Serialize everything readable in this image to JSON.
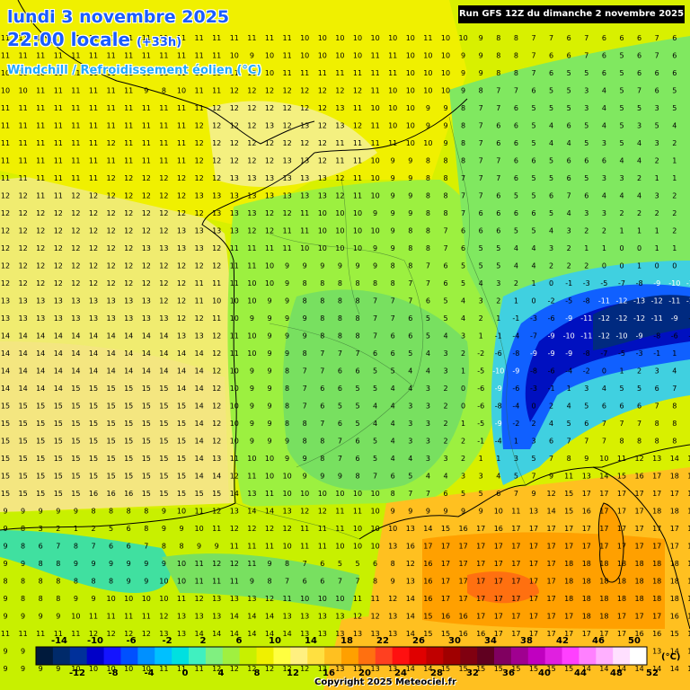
{
  "header": {
    "date": "lundi 3 novembre 2025",
    "time": "22:00 locale",
    "offset": "(+33h)",
    "parameter": "Windchill / Refroidissement éolien (°C)",
    "run": "Run GFS 12Z du dimanche 2 novembre 2025"
  },
  "legend": {
    "unit": "(°C)",
    "top_labels": [
      "-14",
      "-10",
      "-6",
      "-2",
      "2",
      "6",
      "10",
      "14",
      "18",
      "22",
      "26",
      "30",
      "34",
      "38",
      "42",
      "46",
      "50"
    ],
    "bottom_labels": [
      "-12",
      "-8",
      "-4",
      "0",
      "4",
      "8",
      "12",
      "16",
      "20",
      "24",
      "28",
      "32",
      "36",
      "40",
      "44",
      "48",
      "52"
    ],
    "colors": [
      "#001a3c",
      "#002a6a",
      "#00309a",
      "#0000c8",
      "#1414ff",
      "#0050ff",
      "#0090ff",
      "#00c0ff",
      "#00e0e0",
      "#40f0c0",
      "#80f080",
      "#a0f040",
      "#c8f000",
      "#f0f000",
      "#ffff40",
      "#fff080",
      "#ffe040",
      "#ffc020",
      "#ffa000",
      "#ff7010",
      "#ff4020",
      "#ff1010",
      "#e00000",
      "#c00000",
      "#a00000",
      "#800010",
      "#600020",
      "#800060",
      "#a00090",
      "#c000c0",
      "#e020e0",
      "#ff40ff",
      "#ff80ff",
      "#ffb0ff",
      "#ffe0ff",
      "#ffffff"
    ]
  },
  "footer": {
    "copyright": "Copyright 2025 Meteociel.fr"
  },
  "map_labels": {
    "rows": [
      "11 11 11 11 11 11 11 11 11 11 11 11 11 11 11 11 11 10 10 10 10 10 10 10 11 10 10 9 8 8 7 7 6 7 6 6 6 7 6 7",
      "11 11 11 11 11 11 11 11 11 11 11 11 11 10 9 10 11 10 10 10 10 11 11 10 10 10 9 9 8 8 7 6 6 7 6 5 6 7 6 7",
      "10 10 10 11 11 11 11 11 11 11 11 11 11 11 10 10 11 11 11 11 11 11 11 10 10 10 9 9 8 8 7 6 5 5 6 5 6 6 6 6",
      "10 10 11 11 11 11 11 11 9 8 10 11 11 12 12 12 12 12 12 12 12 11 10 10 10 10 9 8 7 7 6 5 5 3 4 5 7 6 5 5",
      "11 11 11 11 11 11 11 11 11 11 11 11 12 12 12 12 12 12 12 13 11 10 10 10 9 9 8 7 7 6 5 5 5 3 4 5 5 3 5 5",
      "11 11 11 11 11 11 11 11 11 11 11 12 12 12 12 13 12 13 12 13 12 11 10 10 9 9 8 7 6 6 5 4 6 5 4 5 3 5 4 3",
      "11 11 11 11 11 11 12 11 11 11 11 12 12 12 12 12 12 12 12 11 11 11 11 10 10 9 8 7 6 6 5 4 4 5 3 5 4 3 2 1",
      "11 11 11 11 11 11 11 11 11 11 11 12 12 12 12 12 13 13 12 11 11 10 9 9 8 8 8 7 7 6 6 5 6 6 6 4 4 2 1 1",
      "11 11 11 11 11 11 12 12 12 12 12 12 12 13 13 13 13 13 13 12 11 10 9 9 8 8 7 7 7 6 5 5 6 5 3 3 2 1 1 1",
      "12 12 11 11 12 12 12 12 12 12 12 13 13 13 13 13 13 13 13 12 11 10 9 9 8 8 7 7 6 5 5 6 7 6 4 4 4 3 2 2",
      "12 12 12 12 12 12 12 12 12 12 12 12 13 13 13 12 12 11 10 10 10 9 9 9 8 8 7 6 6 6 6 5 4 3 3 2 2 2 2 2",
      "12 12 12 12 12 12 12 12 12 12 13 13 13 13 12 12 11 11 10 10 10 10 9 8 8 7 6 6 6 5 5 4 3 2 2 1 1 1 2 2",
      "12 12 12 12 12 12 12 12 13 13 13 13 12 11 11 11 11 10 10 10 10 9 9 8 8 7 6 5 5 4 4 3 2 1 1 0 0 1 1 2",
      "12 12 12 12 12 12 12 12 12 12 12 12 12 11 11 10 9 9 9 9 9 9 8 8 7 6 5 5 5 4 4 2 2 2 0 0 1 0 0 1",
      "12 12 12 12 12 12 12 12 12 12 12 11 11 11 10 10 9 8 8 8 8 8 8 7 7 6 5 4 3 2 1 0 -1 -3 -5 -7 -8 -9 -10 -11",
      "13 13 13 13 13 13 13 13 13 12 12 11 10 10 10 9 9 8 8 8 8 7 7 7 6 5 4 3 2 1 0 -2 -5 -8 -11 -12 -13 -12 -11 -11",
      "13 13 13 13 13 13 13 13 13 13 12 12 11 10 9 9 9 9 8 8 8 7 7 6 5 5 4 2 1 -1 -3 -6 -9 -11 -12 -12 -12 -11 -9 -8",
      "14 14 14 14 14 14 14 14 14 14 13 13 12 11 10 9 9 9 8 8 8 7 6 6 5 4 3 1 -1 -4 -7 -9 -10 -11 -12 -10 -9 -8 -6 -4",
      "14 14 14 14 14 14 14 14 14 14 14 14 12 11 10 9 9 8 7 7 7 6 6 5 4 3 2 -2 -6 -8 -9 -9 -9 -8 -7 -5 -3 -1 1 2",
      "14 14 14 14 14 14 14 14 14 14 14 14 12 10 9 9 8 7 7 6 6 5 5 4 4 3 1 -5 -10 -9 -8 -6 -4 -2 0 1 2 3 4 5",
      "14 14 14 14 15 15 15 15 15 15 14 14 12 10 9 9 8 7 6 6 5 5 4 4 3 2 0 -6 -9 -6 -3 -1 1 3 4 5 5 6 7 7",
      "15 15 15 15 15 15 15 15 15 15 15 14 12 10 9 9 8 7 6 5 5 4 4 3 3 2 0 -6 -8 -4 0 2 4 5 6 6 6 7 8 8",
      "15 15 15 15 15 15 15 15 15 15 15 14 12 10 9 9 8 8 7 6 5 4 4 3 3 2 1 -5 -9 -2 2 4 5 6 7 7 7 8 8 8",
      "15 15 15 15 15 15 15 15 15 15 15 14 12 10 9 9 9 8 8 7 6 5 4 3 3 2 2 -1 -4 1 3 6 7 7 7 8 8 8 8 9",
      "15 15 15 15 15 15 15 15 15 15 15 14 13 11 10 10 9 9 8 7 6 5 4 4 3 3 2 1 1 3 5 7 8 9 10 11 12 13 14 15",
      "15 15 15 15 15 15 15 15 15 15 15 14 14 12 11 10 10 9 9 9 8 7 6 5 4 4 3 3 4 5 7 9 11 13 14 15 16 17 18 18",
      "15 15 15 15 15 16 16 16 15 15 15 15 15 14 13 11 10 10 10 10 10 10 8 7 7 6 5 5 6 7 9 12 15 17 17 17 17 17 17 18",
      "9 9 9 9 9 8 8 8 8 9 10 11 12 13 14 14 13 12 12 11 11 10 9 9 9 9 9 9 10 11 13 14 15 16 17 17 17 18 18 18",
      "9 8 3 2 1 2 5 6 8 9 9 10 11 12 12 12 12 11 11 11 10 10 10 13 14 15 16 17 16 17 17 17 17 17 17 17 17 17 17 17",
      "9 8 6 7 8 7 6 6 7 8 8 9 9 11 11 11 10 11 11 10 10 10 13 16 17 17 17 17 17 17 17 17 17 17 17 17 17 17 17 17",
      "9 9 8 8 9 9 9 9 9 9 10 11 12 12 11 9 8 7 6 5 5 6 8 12 16 17 17 17 17 17 17 17 18 18 18 18 18 18 18 18",
      "8 8 8 8 8 8 8 9 9 10 10 11 11 11 9 8 7 6 6 7 7 8 9 13 16 17 17 17 17 17 17 17 18 18 18 18 18 18 18 18",
      "9 8 8 8 9 9 10 10 10 10 11 12 13 13 13 12 11 10 10 10 11 11 12 14 16 17 17 17 17 17 17 17 18 18 18 18 18 18 18 18",
      "9 9 9 9 10 11 11 11 11 12 13 13 13 14 14 14 13 13 13 13 12 12 13 14 15 16 16 17 17 17 17 17 17 18 18 17 17 17 16 16",
      "11 11 11 11 11 12 12 12 12 13 13 14 14 14 14 14 14 13 13 13 13 13 13 14 15 15 16 16 17 17 17 17 17 17 17 17 16 16 15 15",
      "9 9 9 9 9 10 10 10 11 11 12 12 12 13 13 13 13 13 13 13 13 13 14 14 15 15 16 16 16 16 16 16 16 15 15 14 14 13 14 14",
      "9 9 9 9 10 10 10 10 10 11 11 11 12 12 12 12 12 12 13 13 13 13 13 14 14 15 15 15 15 15 15 15 15 14 14 14 14 14 14 14"
    ]
  }
}
